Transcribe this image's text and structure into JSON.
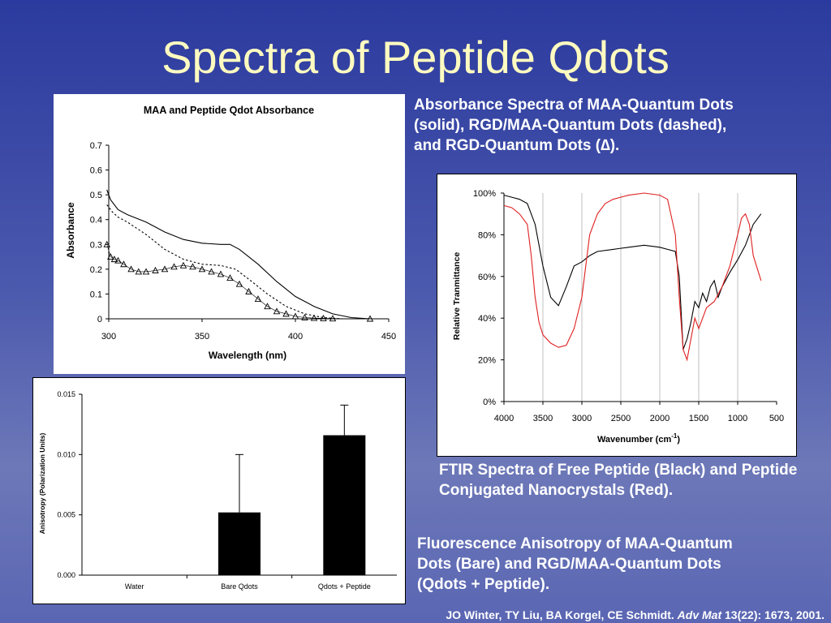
{
  "slide": {
    "title": "Spectra of Peptide Qdots",
    "caption_absorbance": "Absorbance Spectra of MAA-Quantum Dots (solid), RGD/MAA-Quantum Dots (dashed), and RGD-Quantum Dots (∆).",
    "caption_ftir": "FTIR Spectra of Free Peptide (Black) and Peptide Conjugated Nanocrystals (Red).",
    "caption_anisotropy": "Fluorescence Anisotropy of MAA-Quantum Dots (Bare) and RGD/MAA-Quantum Dots (Qdots + Peptide).",
    "citation_authors": "JO Winter, TY Liu, BA Korgel, CE Schmidt. ",
    "citation_journal": "Adv Mat",
    "citation_rest": " 13(22): 1673, 2001."
  },
  "chart_data": [
    {
      "type": "line",
      "title": "MAA and Peptide Qdot Absorbance",
      "xlabel": "Wavelength (nm)",
      "ylabel": "Absorbance",
      "xlim": [
        300,
        450
      ],
      "ylim": [
        0,
        0.7
      ],
      "xticks": [
        "300",
        "350",
        "400",
        "450"
      ],
      "yticks": [
        "0",
        "0.1",
        "0.2",
        "0.3",
        "0.4",
        "0.5",
        "0.6",
        "0.7"
      ],
      "grid": false,
      "series": [
        {
          "style": "solid",
          "color": "#000000",
          "x": [
            299,
            301,
            305,
            310,
            320,
            330,
            340,
            350,
            360,
            365,
            370,
            380,
            390,
            400,
            410,
            420,
            430,
            440,
            450
          ],
          "y": [
            0.52,
            0.48,
            0.44,
            0.42,
            0.39,
            0.35,
            0.32,
            0.305,
            0.3,
            0.3,
            0.28,
            0.22,
            0.15,
            0.09,
            0.05,
            0.02,
            0.005,
            0.0,
            0.0
          ]
        },
        {
          "style": "dashed",
          "color": "#000000",
          "x": [
            299,
            302,
            305,
            310,
            320,
            330,
            340,
            350,
            360,
            368,
            375,
            385,
            395,
            405,
            415,
            425,
            430
          ],
          "y": [
            0.46,
            0.43,
            0.41,
            0.39,
            0.34,
            0.28,
            0.24,
            0.22,
            0.215,
            0.2,
            0.16,
            0.1,
            0.05,
            0.02,
            0.005,
            0.0,
            0.0
          ]
        },
        {
          "style": "triangle",
          "color": "#000000",
          "x": [
            299,
            301,
            303,
            305,
            308,
            312,
            316,
            320,
            325,
            330,
            335,
            340,
            345,
            350,
            355,
            360,
            365,
            370,
            375,
            380,
            385,
            390,
            395,
            400,
            405,
            410,
            415,
            420,
            440
          ],
          "y": [
            0.3,
            0.25,
            0.24,
            0.235,
            0.22,
            0.2,
            0.19,
            0.19,
            0.195,
            0.2,
            0.21,
            0.215,
            0.21,
            0.2,
            0.19,
            0.18,
            0.165,
            0.14,
            0.11,
            0.08,
            0.05,
            0.03,
            0.02,
            0.01,
            0.005,
            0.003,
            0.002,
            0.001,
            0.0
          ]
        }
      ]
    },
    {
      "type": "line",
      "xlabel": "Wavenumber (cm",
      "xlabel_sup": "-1",
      "xlabel_end": ")",
      "ylabel": "Relative Tranmittance",
      "xlim": [
        4000,
        500
      ],
      "ylim": [
        0,
        100
      ],
      "xticks": [
        "4000",
        "3500",
        "3000",
        "2500",
        "2000",
        "1500",
        "1000",
        "500"
      ],
      "yticks": [
        "0%",
        "20%",
        "40%",
        "60%",
        "80%",
        "100%"
      ],
      "grid": true,
      "series": [
        {
          "color": "#000000",
          "x": [
            4000,
            3900,
            3800,
            3700,
            3600,
            3500,
            3400,
            3300,
            3200,
            3100,
            3000,
            2900,
            2800,
            2600,
            2400,
            2200,
            2000,
            1900,
            1800,
            1750,
            1700,
            1650,
            1600,
            1550,
            1500,
            1450,
            1400,
            1350,
            1300,
            1250,
            1200,
            1100,
            1000,
            900,
            800,
            700
          ],
          "y": [
            99,
            98,
            97,
            95,
            85,
            65,
            50,
            46,
            55,
            65,
            67,
            70,
            72,
            73,
            74,
            75,
            74,
            73,
            72,
            60,
            25,
            30,
            38,
            48,
            45,
            52,
            48,
            55,
            58,
            50,
            55,
            62,
            68,
            75,
            85,
            90
          ]
        },
        {
          "color": "#e02020",
          "x": [
            4000,
            3900,
            3800,
            3700,
            3650,
            3600,
            3550,
            3500,
            3400,
            3300,
            3200,
            3100,
            3000,
            2900,
            2800,
            2700,
            2600,
            2500,
            2400,
            2200,
            2000,
            1900,
            1800,
            1750,
            1700,
            1650,
            1600,
            1550,
            1500,
            1400,
            1300,
            1200,
            1100,
            1000,
            950,
            900,
            850,
            800,
            700
          ],
          "y": [
            94,
            93,
            90,
            85,
            70,
            50,
            38,
            32,
            28,
            26,
            27,
            35,
            50,
            80,
            90,
            95,
            97,
            98,
            99,
            100,
            99,
            97,
            80,
            50,
            25,
            20,
            30,
            40,
            35,
            45,
            48,
            55,
            65,
            80,
            88,
            90,
            85,
            70,
            58
          ]
        }
      ]
    },
    {
      "type": "bar",
      "ylabel": "Anisotropy (Polarization Units)",
      "categories": [
        "Water",
        "Bare Qdots",
        "Qdots + Peptide"
      ],
      "values": [
        0,
        0.0052,
        0.0116
      ],
      "errors": [
        0,
        0.0048,
        0.0025
      ],
      "ylim": [
        0,
        0.015
      ],
      "yticks": [
        "0.000",
        "0.005",
        "0.010",
        "0.015"
      ],
      "colors": [
        "#000000"
      ]
    }
  ]
}
